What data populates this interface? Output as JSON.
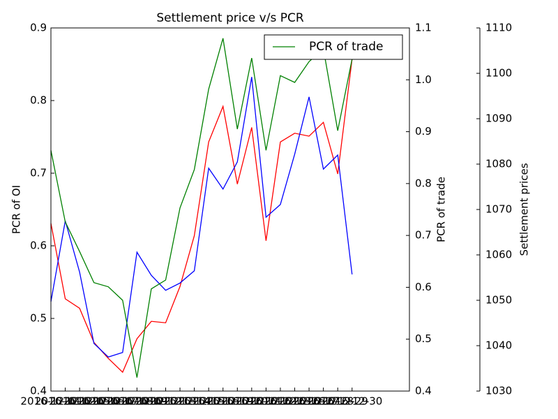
{
  "chart_data": {
    "type": "line",
    "title": "Settlement price v/s PCR",
    "ylabel": "PCR of OI",
    "y2label": "PCR of trade",
    "y3label": "Settlement prices",
    "categories": [
      "2016-12-01",
      "2016-12-02",
      "2016-12-05",
      "2016-12-06",
      "2016-12-07",
      "2016-12-08",
      "2016-12-09",
      "2016-12-12",
      "2016-12-13",
      "2016-12-14",
      "2016-12-15",
      "2016-12-16",
      "2016-12-19",
      "2016-12-20",
      "2016-12-21",
      "2016-12-22",
      "2016-12-23",
      "2016-12-26",
      "2016-12-27",
      "2016-12-28",
      "2016-12-29",
      "2016-12-30"
    ],
    "xlim": [
      0,
      25
    ],
    "ylim": [
      0.4,
      0.9
    ],
    "yticks": [
      0.4,
      0.5,
      0.6,
      0.7,
      0.8,
      0.9
    ],
    "y2lim": [
      0.4,
      1.1
    ],
    "y2ticks": [
      0.4,
      0.5,
      0.6,
      0.7,
      0.8,
      0.9,
      {
        "value": 1,
        "label": "1.0"
      },
      1.1
    ],
    "y3lim": [
      1030,
      1110
    ],
    "y3ticks": [
      1030,
      1040,
      1050,
      1060,
      1070,
      1080,
      1090,
      1100,
      1110
    ],
    "legend": "upper right",
    "series": [
      {
        "color": "#ff0000",
        "axis": "y",
        "values": [
          0.631,
          0.527,
          0.514,
          0.467,
          0.445,
          0.426,
          0.472,
          0.496,
          0.494,
          0.544,
          0.614,
          0.743,
          0.792,
          0.685,
          0.763,
          0.607,
          0.743,
          0.755,
          0.751,
          0.77,
          0.699,
          0.857
        ]
      },
      {
        "color": "#0000ff",
        "axis": "y3",
        "values": [
          1049.7,
          1067.5,
          1056.2,
          1040.5,
          1037.5,
          1038.5,
          1060.6,
          1055.5,
          1052.2,
          1053.8,
          1056.5,
          1079.1,
          1074.5,
          1080.5,
          1099.2,
          1068.3,
          1071.1,
          1082.2,
          1094.8,
          1078.9,
          1082.0,
          1055.7
        ]
      },
      {
        "name": "PCR of trade",
        "color": "#008000",
        "axis": "y2",
        "values": [
          0.864,
          0.726,
          0.669,
          0.609,
          0.601,
          0.575,
          0.426,
          0.597,
          0.614,
          0.753,
          0.827,
          0.982,
          1.08,
          0.905,
          1.042,
          0.864,
          1.008,
          0.995,
          1.035,
          1.06,
          0.902,
          1.04
        ]
      }
    ]
  }
}
